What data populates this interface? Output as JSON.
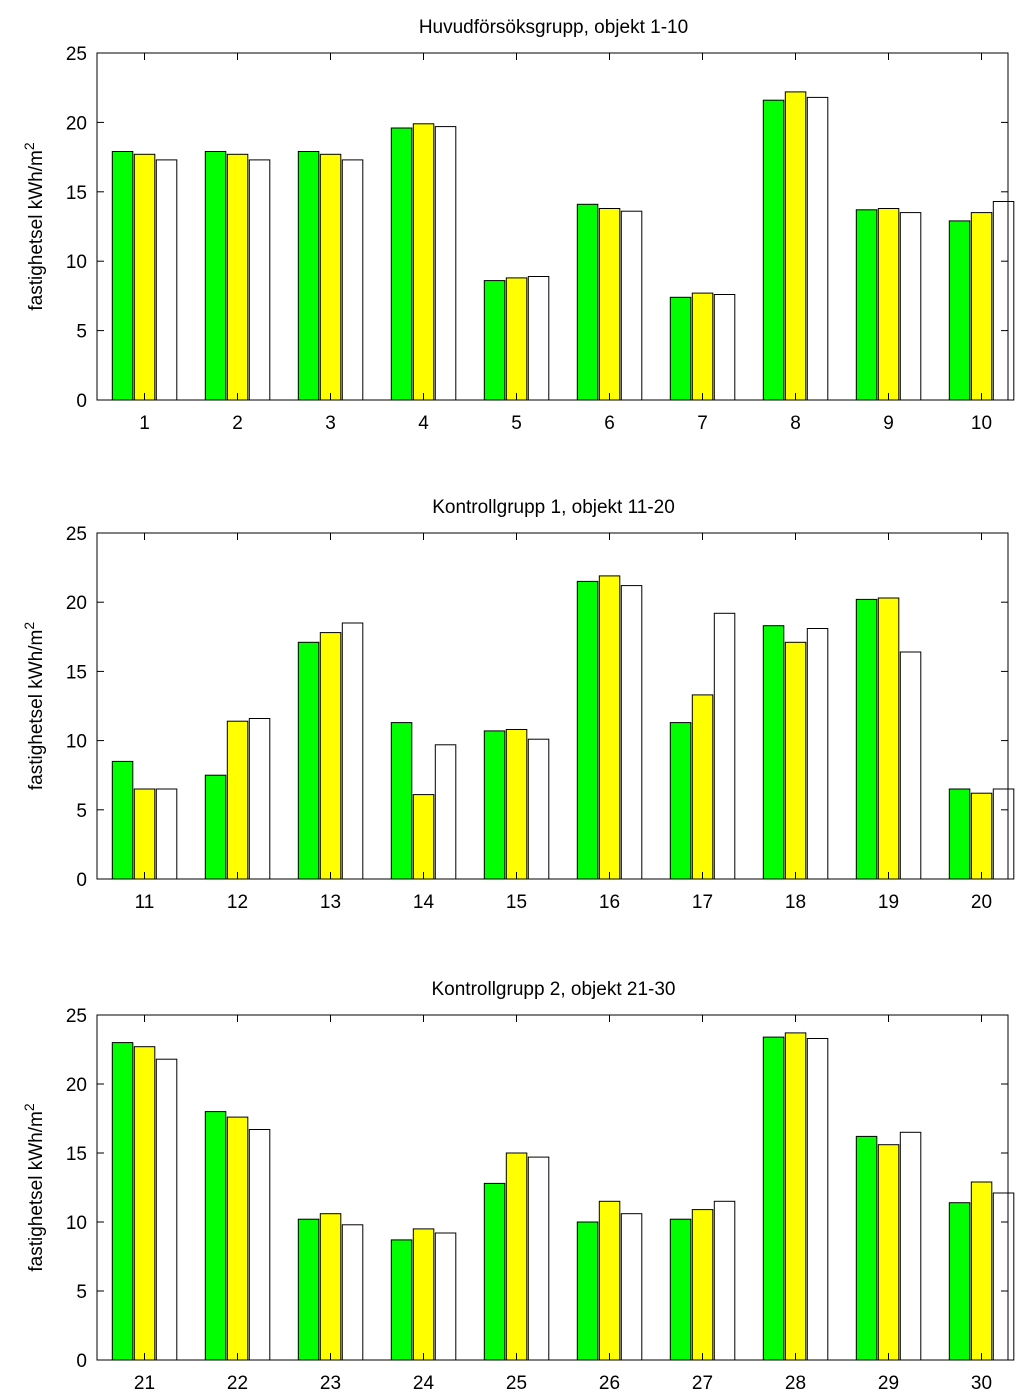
{
  "chart_data": [
    {
      "type": "bar",
      "title": "Huvudförsöksgrupp, objekt 1-10",
      "ylabel": "fastighetsel   kWh/m²",
      "xlabel": "",
      "categories": [
        "1",
        "2",
        "3",
        "4",
        "5",
        "6",
        "7",
        "8",
        "9",
        "10"
      ],
      "ylim": [
        0,
        25
      ],
      "yticks": [
        0,
        5,
        10,
        15,
        20,
        25
      ],
      "colors": [
        "#00ff00",
        "#ffff00",
        "#ffffff"
      ],
      "grid": false,
      "series": [
        {
          "values": [
            17.9,
            17.9,
            17.9,
            19.6,
            8.6,
            14.1,
            7.4,
            21.6,
            13.7,
            12.9
          ]
        },
        {
          "values": [
            17.7,
            17.7,
            17.7,
            19.9,
            8.8,
            13.8,
            7.7,
            22.2,
            13.8,
            13.5
          ]
        },
        {
          "values": [
            17.3,
            17.3,
            17.3,
            19.7,
            8.9,
            13.6,
            7.6,
            21.8,
            13.5,
            14.3
          ]
        }
      ]
    },
    {
      "type": "bar",
      "title": "Kontrollgrupp 1, objekt 11-20",
      "ylabel": "fastighetsel   kWh/m²",
      "xlabel": "",
      "categories": [
        "11",
        "12",
        "13",
        "14",
        "15",
        "16",
        "17",
        "18",
        "19",
        "20"
      ],
      "ylim": [
        0,
        25
      ],
      "yticks": [
        0,
        5,
        10,
        15,
        20,
        25
      ],
      "colors": [
        "#00ff00",
        "#ffff00",
        "#ffffff"
      ],
      "grid": false,
      "series": [
        {
          "values": [
            8.5,
            7.5,
            17.1,
            11.3,
            10.7,
            21.5,
            11.3,
            18.3,
            20.2,
            6.5
          ]
        },
        {
          "values": [
            6.5,
            11.4,
            17.8,
            6.1,
            10.8,
            21.9,
            13.3,
            17.1,
            20.3,
            6.2
          ]
        },
        {
          "values": [
            6.5,
            11.6,
            18.5,
            9.7,
            10.1,
            21.2,
            19.2,
            18.1,
            16.4,
            6.5
          ]
        }
      ]
    },
    {
      "type": "bar",
      "title": "Kontrollgrupp 2, objekt 21-30",
      "ylabel": "fastighetsel   kWh/m²",
      "xlabel": "",
      "categories": [
        "21",
        "22",
        "23",
        "24",
        "25",
        "26",
        "27",
        "28",
        "29",
        "30"
      ],
      "ylim": [
        0,
        25
      ],
      "yticks": [
        0,
        5,
        10,
        15,
        20,
        25
      ],
      "colors": [
        "#00ff00",
        "#ffff00",
        "#ffffff"
      ],
      "grid": false,
      "series": [
        {
          "values": [
            23.0,
            18.0,
            10.2,
            8.7,
            12.8,
            10.0,
            10.2,
            23.4,
            16.2,
            11.4
          ]
        },
        {
          "values": [
            22.7,
            17.6,
            10.6,
            9.5,
            15.0,
            11.5,
            10.9,
            23.7,
            15.6,
            12.9
          ]
        },
        {
          "values": [
            21.8,
            16.7,
            9.8,
            9.2,
            14.7,
            10.6,
            11.5,
            23.3,
            16.5,
            12.1
          ]
        }
      ]
    }
  ]
}
